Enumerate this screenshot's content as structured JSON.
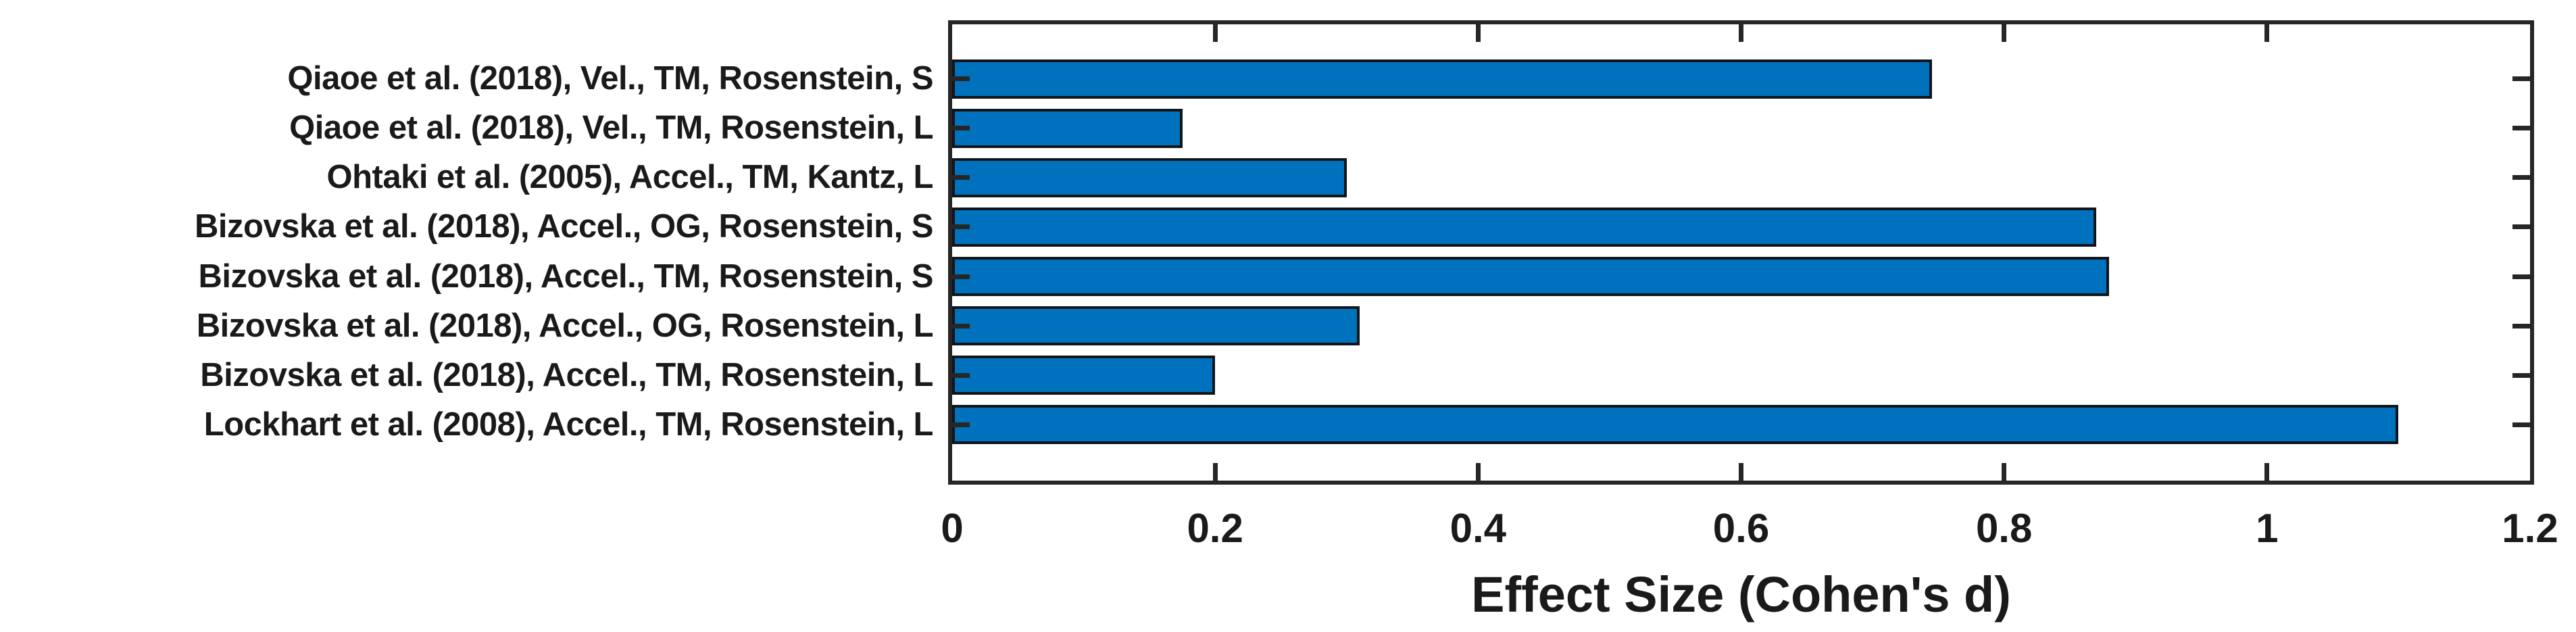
{
  "chart_data": {
    "type": "bar",
    "orientation": "horizontal",
    "title": "",
    "xlabel": "Effect Size (Cohen's d)",
    "ylabel": "",
    "categories": [
      "Qiaoe et al. (2018), Vel., TM, Rosenstein, S",
      "Qiaoe et al. (2018), Vel., TM, Rosenstein, L",
      "Ohtaki et al. (2005), Accel., TM, Kantz, L",
      "Bizovska et al. (2018), Accel., OG, Rosenstein, S",
      "Bizovska et al. (2018), Accel., TM, Rosenstein, S",
      "Bizovska et al. (2018), Accel., OG, Rosenstein, L",
      "Bizovska et al. (2018), Accel., TM, Rosenstein, L",
      "Lockhart et al. (2008), Accel., TM, Rosenstein, L"
    ],
    "values": [
      0.745,
      0.175,
      0.3,
      0.87,
      0.88,
      0.31,
      0.2,
      1.1
    ],
    "xlim": [
      0,
      1.2
    ],
    "xticks": [
      0,
      0.2,
      0.4,
      0.6,
      0.8,
      1,
      1.2
    ],
    "xtick_labels": [
      "0",
      "0.2",
      "0.4",
      "0.6",
      "0.8",
      "1",
      "1.2"
    ],
    "grid": false,
    "legend": null,
    "colors": {
      "bar_fill": "#0072BD",
      "bar_edge": "#111519",
      "axis": "#262626",
      "text": "#1a1a1a",
      "background": "#ffffff"
    }
  }
}
